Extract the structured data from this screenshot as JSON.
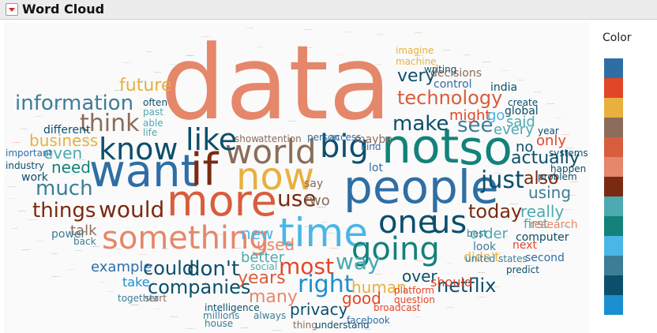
{
  "header": {
    "title": "Word Cloud"
  },
  "legend": {
    "title": "Color",
    "swatches": [
      {
        "name": "color-1",
        "color": "#2f6ea5"
      },
      {
        "name": "color-2",
        "color": "#e24628"
      },
      {
        "name": "color-3",
        "color": "#e8b03e"
      },
      {
        "name": "color-4",
        "color": "#8b6c5a"
      },
      {
        "name": "color-5",
        "color": "#d85d3c"
      },
      {
        "name": "color-6",
        "color": "#e5876a"
      },
      {
        "name": "color-7",
        "color": "#7a2a12"
      },
      {
        "name": "color-8",
        "color": "#4daab0"
      },
      {
        "name": "color-9",
        "color": "#12827a"
      },
      {
        "name": "color-10",
        "color": "#4ab6e6"
      },
      {
        "name": "color-11",
        "color": "#3d7d97"
      },
      {
        "name": "color-12",
        "color": "#0b4f6c"
      },
      {
        "name": "color-13",
        "color": "#1a8fcf"
      }
    ]
  },
  "words": [
    {
      "text": "data",
      "color": "#e5876a"
    },
    {
      "text": "not",
      "color": "#12827a"
    },
    {
      "text": "so",
      "color": "#12827a"
    },
    {
      "text": "people",
      "color": "#2f6ea5"
    },
    {
      "text": "want",
      "color": "#2f6ea5"
    },
    {
      "text": "if",
      "color": "#7a2a12"
    },
    {
      "text": "more",
      "color": "#d85d3c"
    },
    {
      "text": "time",
      "color": "#4ab6e6"
    },
    {
      "text": "now",
      "color": "#e8b03e"
    },
    {
      "text": "world",
      "color": "#8b6c5a"
    },
    {
      "text": "big",
      "color": "#0b4f6c"
    },
    {
      "text": "something",
      "color": "#e5876a"
    },
    {
      "text": "going",
      "color": "#12827a"
    },
    {
      "text": "one",
      "color": "#0b4f6c"
    },
    {
      "text": "us",
      "color": "#0b4f6c"
    },
    {
      "text": "know",
      "color": "#0b4f6c"
    },
    {
      "text": "like",
      "color": "#0b4f6c"
    },
    {
      "text": "information",
      "color": "#3d7d97"
    },
    {
      "text": "think",
      "color": "#8b6c5a"
    },
    {
      "text": "technology",
      "color": "#d85d3c"
    },
    {
      "text": "make",
      "color": "#0b4f6c"
    },
    {
      "text": "see",
      "color": "#3d7d97"
    },
    {
      "text": "just",
      "color": "#0b4f6c"
    },
    {
      "text": "would",
      "color": "#7a2a12"
    },
    {
      "text": "use",
      "color": "#7a2a12"
    },
    {
      "text": "much",
      "color": "#3d7d97"
    },
    {
      "text": "things",
      "color": "#7a2a12"
    },
    {
      "text": "don't",
      "color": "#0b4f6c"
    },
    {
      "text": "right",
      "color": "#1a8fcf"
    },
    {
      "text": "most",
      "color": "#e24628"
    },
    {
      "text": "way",
      "color": "#4daab0"
    },
    {
      "text": "companies",
      "color": "#0b4f6c"
    },
    {
      "text": "could",
      "color": "#0b4f6c"
    },
    {
      "text": "years",
      "color": "#d85d3c"
    },
    {
      "text": "many",
      "color": "#e5876a"
    },
    {
      "text": "privacy",
      "color": "#0b4f6c"
    },
    {
      "text": "netflix",
      "color": "#0b4f6c"
    },
    {
      "text": "today",
      "color": "#7a2a12"
    },
    {
      "text": "very",
      "color": "#0b4f6c"
    },
    {
      "text": "future",
      "color": "#e8b03e"
    },
    {
      "text": "business",
      "color": "#e8b03e"
    },
    {
      "text": "even",
      "color": "#4daab0"
    },
    {
      "text": "need",
      "color": "#12827a"
    },
    {
      "text": "every",
      "color": "#4daab0"
    },
    {
      "text": "actually",
      "color": "#0b4f6c"
    },
    {
      "text": "also",
      "color": "#7a2a12"
    },
    {
      "text": "using",
      "color": "#3d7d97"
    },
    {
      "text": "really",
      "color": "#4daab0"
    },
    {
      "text": "first",
      "color": "#4daab0"
    },
    {
      "text": "order",
      "color": "#4daab0"
    },
    {
      "text": "new",
      "color": "#4ab6e6"
    },
    {
      "text": "used",
      "color": "#e5876a"
    },
    {
      "text": "better",
      "color": "#4daab0"
    },
    {
      "text": "human",
      "color": "#e8b03e"
    },
    {
      "text": "good",
      "color": "#e24628"
    },
    {
      "text": "over",
      "color": "#0b4f6c"
    },
    {
      "text": "example",
      "color": "#2f6ea5"
    },
    {
      "text": "take",
      "color": "#1a8fcf"
    },
    {
      "text": "might",
      "color": "#e24628"
    },
    {
      "text": "go",
      "color": "#4ab6e6"
    },
    {
      "text": "said",
      "color": "#4daab0"
    },
    {
      "text": "only",
      "color": "#e24628"
    },
    {
      "text": "no",
      "color": "#0b4f6c"
    },
    {
      "text": "two",
      "color": "#8b6c5a"
    },
    {
      "text": "say",
      "color": "#8b6c5a"
    },
    {
      "text": "decisions",
      "color": "#8b6c5a"
    },
    {
      "text": "control",
      "color": "#2f6ea5"
    },
    {
      "text": "global",
      "color": "#0b4f6c"
    },
    {
      "text": "india",
      "color": "#0b4f6c"
    },
    {
      "text": "show",
      "color": "#8b6c5a"
    },
    {
      "text": "attention",
      "color": "#8b6c5a"
    },
    {
      "text": "maybe",
      "color": "#8b6c5a"
    },
    {
      "text": "lot",
      "color": "#2f6ea5"
    },
    {
      "text": "talk",
      "color": "#8b6c5a"
    },
    {
      "text": "work",
      "color": "#0b4f6c"
    },
    {
      "text": "different",
      "color": "#0b4f6c"
    },
    {
      "text": "important",
      "color": "#2f6ea5"
    },
    {
      "text": "industry",
      "color": "#0b4f6c"
    },
    {
      "text": "power",
      "color": "#3d7d97"
    },
    {
      "text": "back",
      "color": "#3d7d97"
    },
    {
      "text": "intelligence",
      "color": "#0b4f6c"
    },
    {
      "text": "always",
      "color": "#3d7d97"
    },
    {
      "text": "social",
      "color": "#4daab0"
    },
    {
      "text": "should",
      "color": "#e24628"
    },
    {
      "text": "didn't",
      "color": "#e8b03e"
    },
    {
      "text": "united states",
      "color": "#3d7d97"
    },
    {
      "text": "second",
      "color": "#2f6ea5"
    },
    {
      "text": "computer",
      "color": "#0b4f6c"
    },
    {
      "text": "research",
      "color": "#e5876a"
    },
    {
      "text": "next",
      "color": "#e24628"
    },
    {
      "text": "look",
      "color": "#3d7d97"
    },
    {
      "text": "best",
      "color": "#3d7d97"
    },
    {
      "text": "question",
      "color": "#e24628"
    },
    {
      "text": "platform",
      "color": "#e24628"
    },
    {
      "text": "start",
      "color": "#8b6c5a"
    },
    {
      "text": "together",
      "color": "#3d7d97"
    },
    {
      "text": "thing",
      "color": "#8b6c5a"
    },
    {
      "text": "understand",
      "color": "#0b4f6c"
    },
    {
      "text": "facebook",
      "color": "#2f6ea5"
    },
    {
      "text": "life",
      "color": "#4daab0"
    },
    {
      "text": "able",
      "color": "#4daab0"
    },
    {
      "text": "past",
      "color": "#4daab0"
    },
    {
      "text": "often",
      "color": "#0b4f6c"
    },
    {
      "text": "kind",
      "color": "#2f6ea5"
    },
    {
      "text": "problem",
      "color": "#0b4f6c"
    },
    {
      "text": "year",
      "color": "#0b4f6c"
    },
    {
      "text": "create",
      "color": "#0b4f6c"
    },
    {
      "text": "predict",
      "color": "#0b4f6c"
    },
    {
      "text": "broadcast",
      "color": "#e24628"
    },
    {
      "text": "millions",
      "color": "#3d7d97"
    },
    {
      "text": "house",
      "color": "#3d7d97"
    },
    {
      "text": "person",
      "color": "#2f6ea5"
    },
    {
      "text": "access",
      "color": "#2f6ea5"
    },
    {
      "text": "writing",
      "color": "#0b4f6c"
    },
    {
      "text": "happen",
      "color": "#0b4f6c"
    },
    {
      "text": "systems",
      "color": "#0b4f6c"
    },
    {
      "text": "machine",
      "color": "#e8b03e"
    },
    {
      "text": "imagine",
      "color": "#e8b03e"
    }
  ]
}
